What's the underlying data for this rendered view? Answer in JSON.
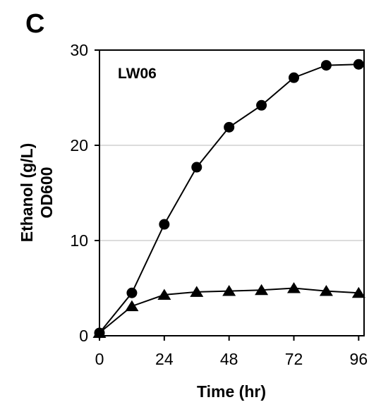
{
  "panel_label": "C",
  "chart_data": {
    "type": "line",
    "title": "",
    "annotation": "LW06",
    "xlabel": "Time (hr)",
    "ylabel": "Ethanol (g/L)",
    "ylabel2": "OD600",
    "xlim": [
      0,
      98
    ],
    "ylim": [
      0,
      30
    ],
    "xticks": [
      0,
      24,
      48,
      72,
      96
    ],
    "yticks": [
      0,
      10,
      20,
      30
    ],
    "grid": "horizontal",
    "series": [
      {
        "marker": "circle",
        "x": [
          0,
          12,
          24,
          36,
          48,
          60,
          72,
          84,
          96
        ],
        "values": [
          0.3,
          4.5,
          11.7,
          17.7,
          21.9,
          24.2,
          27.1,
          28.4,
          28.5
        ]
      },
      {
        "marker": "triangle",
        "x": [
          0,
          12,
          24,
          36,
          48,
          60,
          72,
          84,
          96
        ],
        "values": [
          0.3,
          3.1,
          4.3,
          4.6,
          4.7,
          4.8,
          5.0,
          4.7,
          4.5
        ]
      }
    ]
  }
}
